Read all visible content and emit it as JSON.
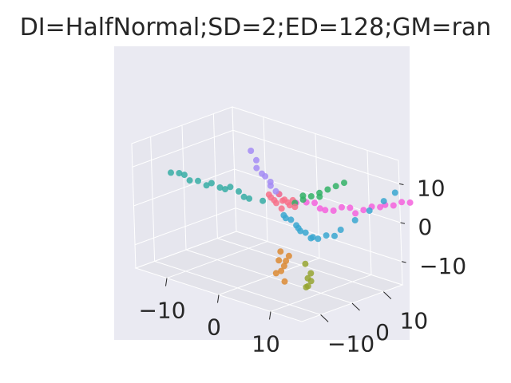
{
  "chart_data": {
    "type": "scatter",
    "projection": "3d",
    "title": "DI=HalfNormal;SD=2;ED=128;GM=ran",
    "xlabel": "",
    "ylabel": "",
    "zlabel": "",
    "x_ticks": [
      -10,
      0,
      10
    ],
    "y_ticks": [
      -10,
      0,
      10
    ],
    "z_ticks": [
      -10,
      0,
      10
    ],
    "xlim": [
      -16,
      16
    ],
    "ylim": [
      -16,
      16
    ],
    "zlim": [
      -16,
      16
    ],
    "grid": true,
    "style": "seaborn-darkgrid",
    "legend": "none",
    "series": [
      {
        "color": "#f77189",
        "points": [
          [
            -1,
            4,
            2
          ],
          [
            0,
            3,
            2
          ],
          [
            1,
            4,
            3
          ],
          [
            0,
            5,
            2
          ],
          [
            2,
            4,
            2
          ],
          [
            -2,
            4,
            3
          ],
          [
            1,
            3,
            1
          ],
          [
            0,
            4,
            4
          ],
          [
            -1,
            3,
            3
          ],
          [
            2,
            5,
            3
          ],
          [
            1,
            5,
            2
          ],
          [
            3,
            4,
            2
          ]
        ]
      },
      {
        "color": "#a48cf4",
        "points": [
          [
            -4,
            2,
            14
          ],
          [
            -3,
            2,
            12
          ],
          [
            -3,
            2,
            10
          ],
          [
            -2,
            3,
            8
          ],
          [
            -1,
            3,
            6
          ],
          [
            0,
            3,
            5
          ],
          [
            0,
            4,
            4
          ],
          [
            -2,
            2,
            9
          ],
          [
            -1,
            3,
            7
          ]
        ]
      },
      {
        "color": "#dc8932",
        "points": [
          [
            3,
            -1,
            -8
          ],
          [
            4,
            -1,
            -10
          ],
          [
            3,
            0,
            -12
          ],
          [
            2,
            -1,
            -14
          ],
          [
            3,
            0,
            -16
          ],
          [
            4,
            0,
            -9
          ],
          [
            3,
            -1,
            -13
          ],
          [
            2,
            0,
            -11
          ]
        ]
      },
      {
        "color": "#97a431",
        "points": [
          [
            9,
            -3,
            -8
          ],
          [
            10,
            -3,
            -10
          ],
          [
            10,
            -3,
            -12
          ],
          [
            9,
            -3,
            -14
          ],
          [
            10,
            -4,
            -13
          ],
          [
            10,
            -4,
            -11
          ]
        ]
      },
      {
        "color": "#32b166",
        "points": [
          [
            5,
            6,
            5
          ],
          [
            6,
            7,
            6
          ],
          [
            7,
            8,
            7
          ],
          [
            8,
            9,
            8
          ],
          [
            9,
            10,
            9
          ],
          [
            4,
            5,
            4
          ],
          [
            3,
            4,
            3
          ],
          [
            4,
            5,
            5
          ],
          [
            6,
            7,
            5
          ]
        ]
      },
      {
        "color": "#36ada4",
        "points": [
          [
            -16,
            -4,
            5
          ],
          [
            -14,
            -3,
            5
          ],
          [
            -12,
            -2,
            4
          ],
          [
            -10,
            -1,
            4
          ],
          [
            -8,
            0,
            3
          ],
          [
            -6,
            1,
            3
          ],
          [
            -4,
            1,
            2
          ],
          [
            -2,
            2,
            2
          ],
          [
            -11,
            -1,
            3
          ],
          [
            -7,
            0,
            4
          ],
          [
            -13,
            -3,
            4
          ],
          [
            -9,
            0,
            3
          ],
          [
            -5,
            1,
            2
          ],
          [
            -15,
            -3,
            5
          ]
        ]
      },
      {
        "color": "#39a7d0",
        "points": [
          [
            2,
            2,
            0
          ],
          [
            4,
            1,
            0
          ],
          [
            6,
            0,
            -1
          ],
          [
            8,
            -1,
            -1
          ],
          [
            10,
            -2,
            -1
          ],
          [
            12,
            -1,
            0
          ],
          [
            13,
            2,
            1
          ],
          [
            14,
            5,
            3
          ],
          [
            15,
            8,
            5
          ],
          [
            16,
            11,
            7
          ],
          [
            17,
            13,
            9
          ],
          [
            3,
            1,
            0
          ],
          [
            7,
            -1,
            -1
          ],
          [
            11,
            -2,
            -1
          ],
          [
            9,
            -1,
            -2
          ],
          [
            13,
            0,
            0
          ],
          [
            5,
            1,
            -1
          ]
        ]
      },
      {
        "color": "#f461dd",
        "points": [
          [
            2,
            6,
            2
          ],
          [
            4,
            6,
            3
          ],
          [
            6,
            7,
            2
          ],
          [
            8,
            8,
            2
          ],
          [
            10,
            10,
            3
          ],
          [
            12,
            11,
            3
          ],
          [
            14,
            13,
            4
          ],
          [
            16,
            14,
            5
          ],
          [
            18,
            16,
            6
          ],
          [
            5,
            7,
            3
          ],
          [
            9,
            9,
            3
          ],
          [
            13,
            12,
            4
          ],
          [
            15,
            13,
            5
          ],
          [
            17,
            15,
            6
          ],
          [
            7,
            7,
            2
          ],
          [
            11,
            10,
            2
          ]
        ]
      }
    ]
  }
}
